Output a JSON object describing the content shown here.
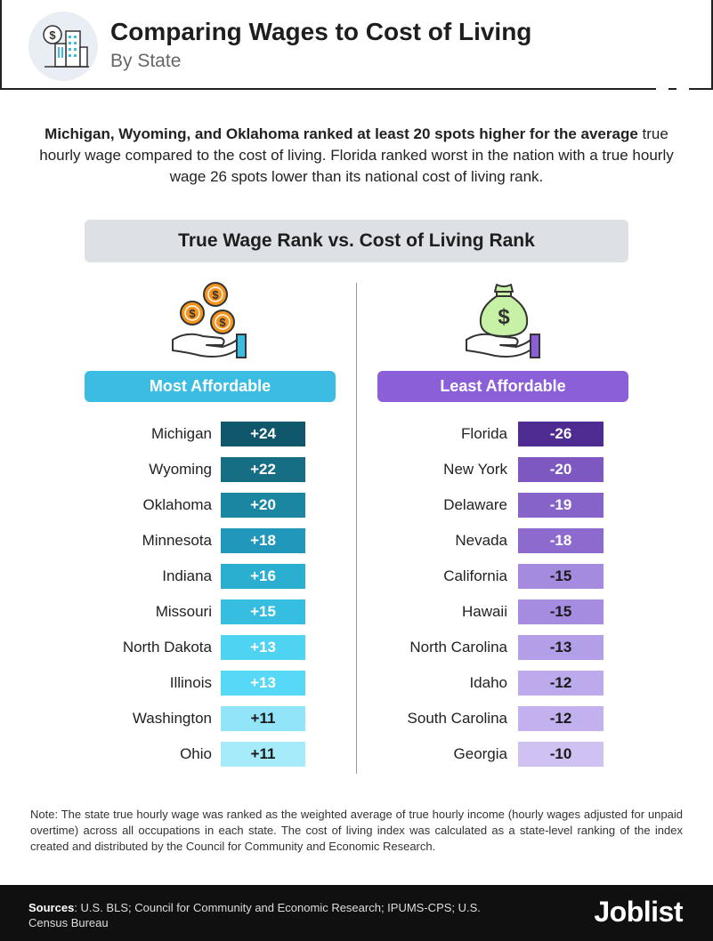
{
  "header": {
    "title": "Comparing Wages to Cost of Living",
    "subtitle": "By State"
  },
  "intro": {
    "lead": "Michigan, Wyoming, and Oklahoma ranked at least 20 spots higher for the average",
    "body": "true hourly wage compared to the cost of living. Florida ranked worst in the nation with a true hourly wage 26 spots lower than its national cost of living rank."
  },
  "chart_data": {
    "type": "table",
    "title": "True Wage Rank vs. Cost of Living Rank",
    "series": [
      {
        "name": "Most Affordable",
        "categories": [
          "Michigan",
          "Wyoming",
          "Oklahoma",
          "Minnesota",
          "Indiana",
          "Missouri",
          "North Dakota",
          "Illinois",
          "Washington",
          "Ohio"
        ],
        "values": [
          24,
          22,
          20,
          18,
          16,
          15,
          13,
          13,
          11,
          11
        ],
        "labels": [
          "+24",
          "+22",
          "+20",
          "+18",
          "+16",
          "+15",
          "+13",
          "+13",
          "+11",
          "+11"
        ],
        "colors": [
          "#10576b",
          "#166e85",
          "#1b86a1",
          "#2198bb",
          "#2bafd1",
          "#35bee0",
          "#4fd3f2",
          "#55d9f6",
          "#92e4f8",
          "#a6ebfa"
        ],
        "text_colors": [
          "#ffffff",
          "#ffffff",
          "#ffffff",
          "#ffffff",
          "#ffffff",
          "#ffffff",
          "#ffffff",
          "#ffffff",
          "#1a1a1a",
          "#1a1a1a"
        ]
      },
      {
        "name": "Least Affordable",
        "categories": [
          "Florida",
          "New York",
          "Delaware",
          "Nevada",
          "California",
          "Hawaii",
          "North Carolina",
          "Idaho",
          "South Carolina",
          "Georgia"
        ],
        "values": [
          -26,
          -20,
          -19,
          -18,
          -15,
          -15,
          -13,
          -12,
          -12,
          -10
        ],
        "labels": [
          "-26",
          "-20",
          "-19",
          "-18",
          "-15",
          "-15",
          "-13",
          "-12",
          "-12",
          "-10"
        ],
        "colors": [
          "#4f2c92",
          "#7d58c1",
          "#8663c9",
          "#8d6acd",
          "#a48be0",
          "#a68ce1",
          "#b39fe7",
          "#bdaaec",
          "#c2b1ee",
          "#d0c1f3"
        ],
        "text_colors": [
          "#ffffff",
          "#ffffff",
          "#ffffff",
          "#ffffff",
          "#1a1a1a",
          "#1a1a1a",
          "#1a1a1a",
          "#1a1a1a",
          "#1a1a1a",
          "#1a1a1a"
        ]
      }
    ]
  },
  "note": "Note: The state true hourly wage was ranked as the weighted average of true hourly income (hourly wages adjusted for unpaid overtime) across all occupations in each state. The cost of living index was calculated as a state-level ranking of the index created and distributed by the Council for Community and Economic Research.",
  "footer": {
    "sources_label": "Sources",
    "sources_text": ": U.S. BLS; Council for Community and Economic Research; IPUMS-CPS; U.S. Census Bureau",
    "logo": "Joblist"
  },
  "icons": {
    "header": "city-dollar-icon",
    "left": "hand-coins-icon",
    "right": "hand-money-bag-icon"
  },
  "colors": {
    "accent_left": "#3bbde3",
    "accent_right": "#8a5fd8",
    "title_band": "#dde0e5",
    "footer_bg": "#101010"
  }
}
